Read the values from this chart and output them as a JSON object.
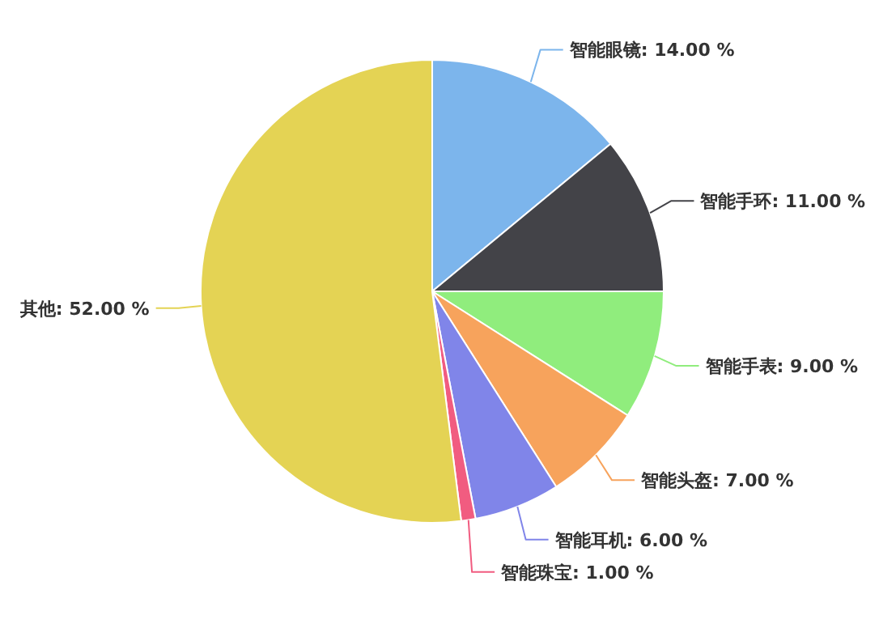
{
  "chart_data": {
    "type": "pie",
    "categories": [
      "智能眼镜",
      "智能手环",
      "智能手表",
      "智能头盔",
      "智能耳机",
      "智能珠宝",
      "其他"
    ],
    "values": [
      14,
      11,
      9,
      7,
      6,
      1,
      52
    ],
    "value_labels": [
      "14.00 %",
      "11.00 %",
      "9.00 %",
      "7.00 %",
      "6.00 %",
      "1.00 %",
      "52.00 %"
    ],
    "colors": [
      "#7cb5ec",
      "#434348",
      "#90ed7d",
      "#f7a35c",
      "#8085e9",
      "#f15c80",
      "#e4d354"
    ]
  }
}
